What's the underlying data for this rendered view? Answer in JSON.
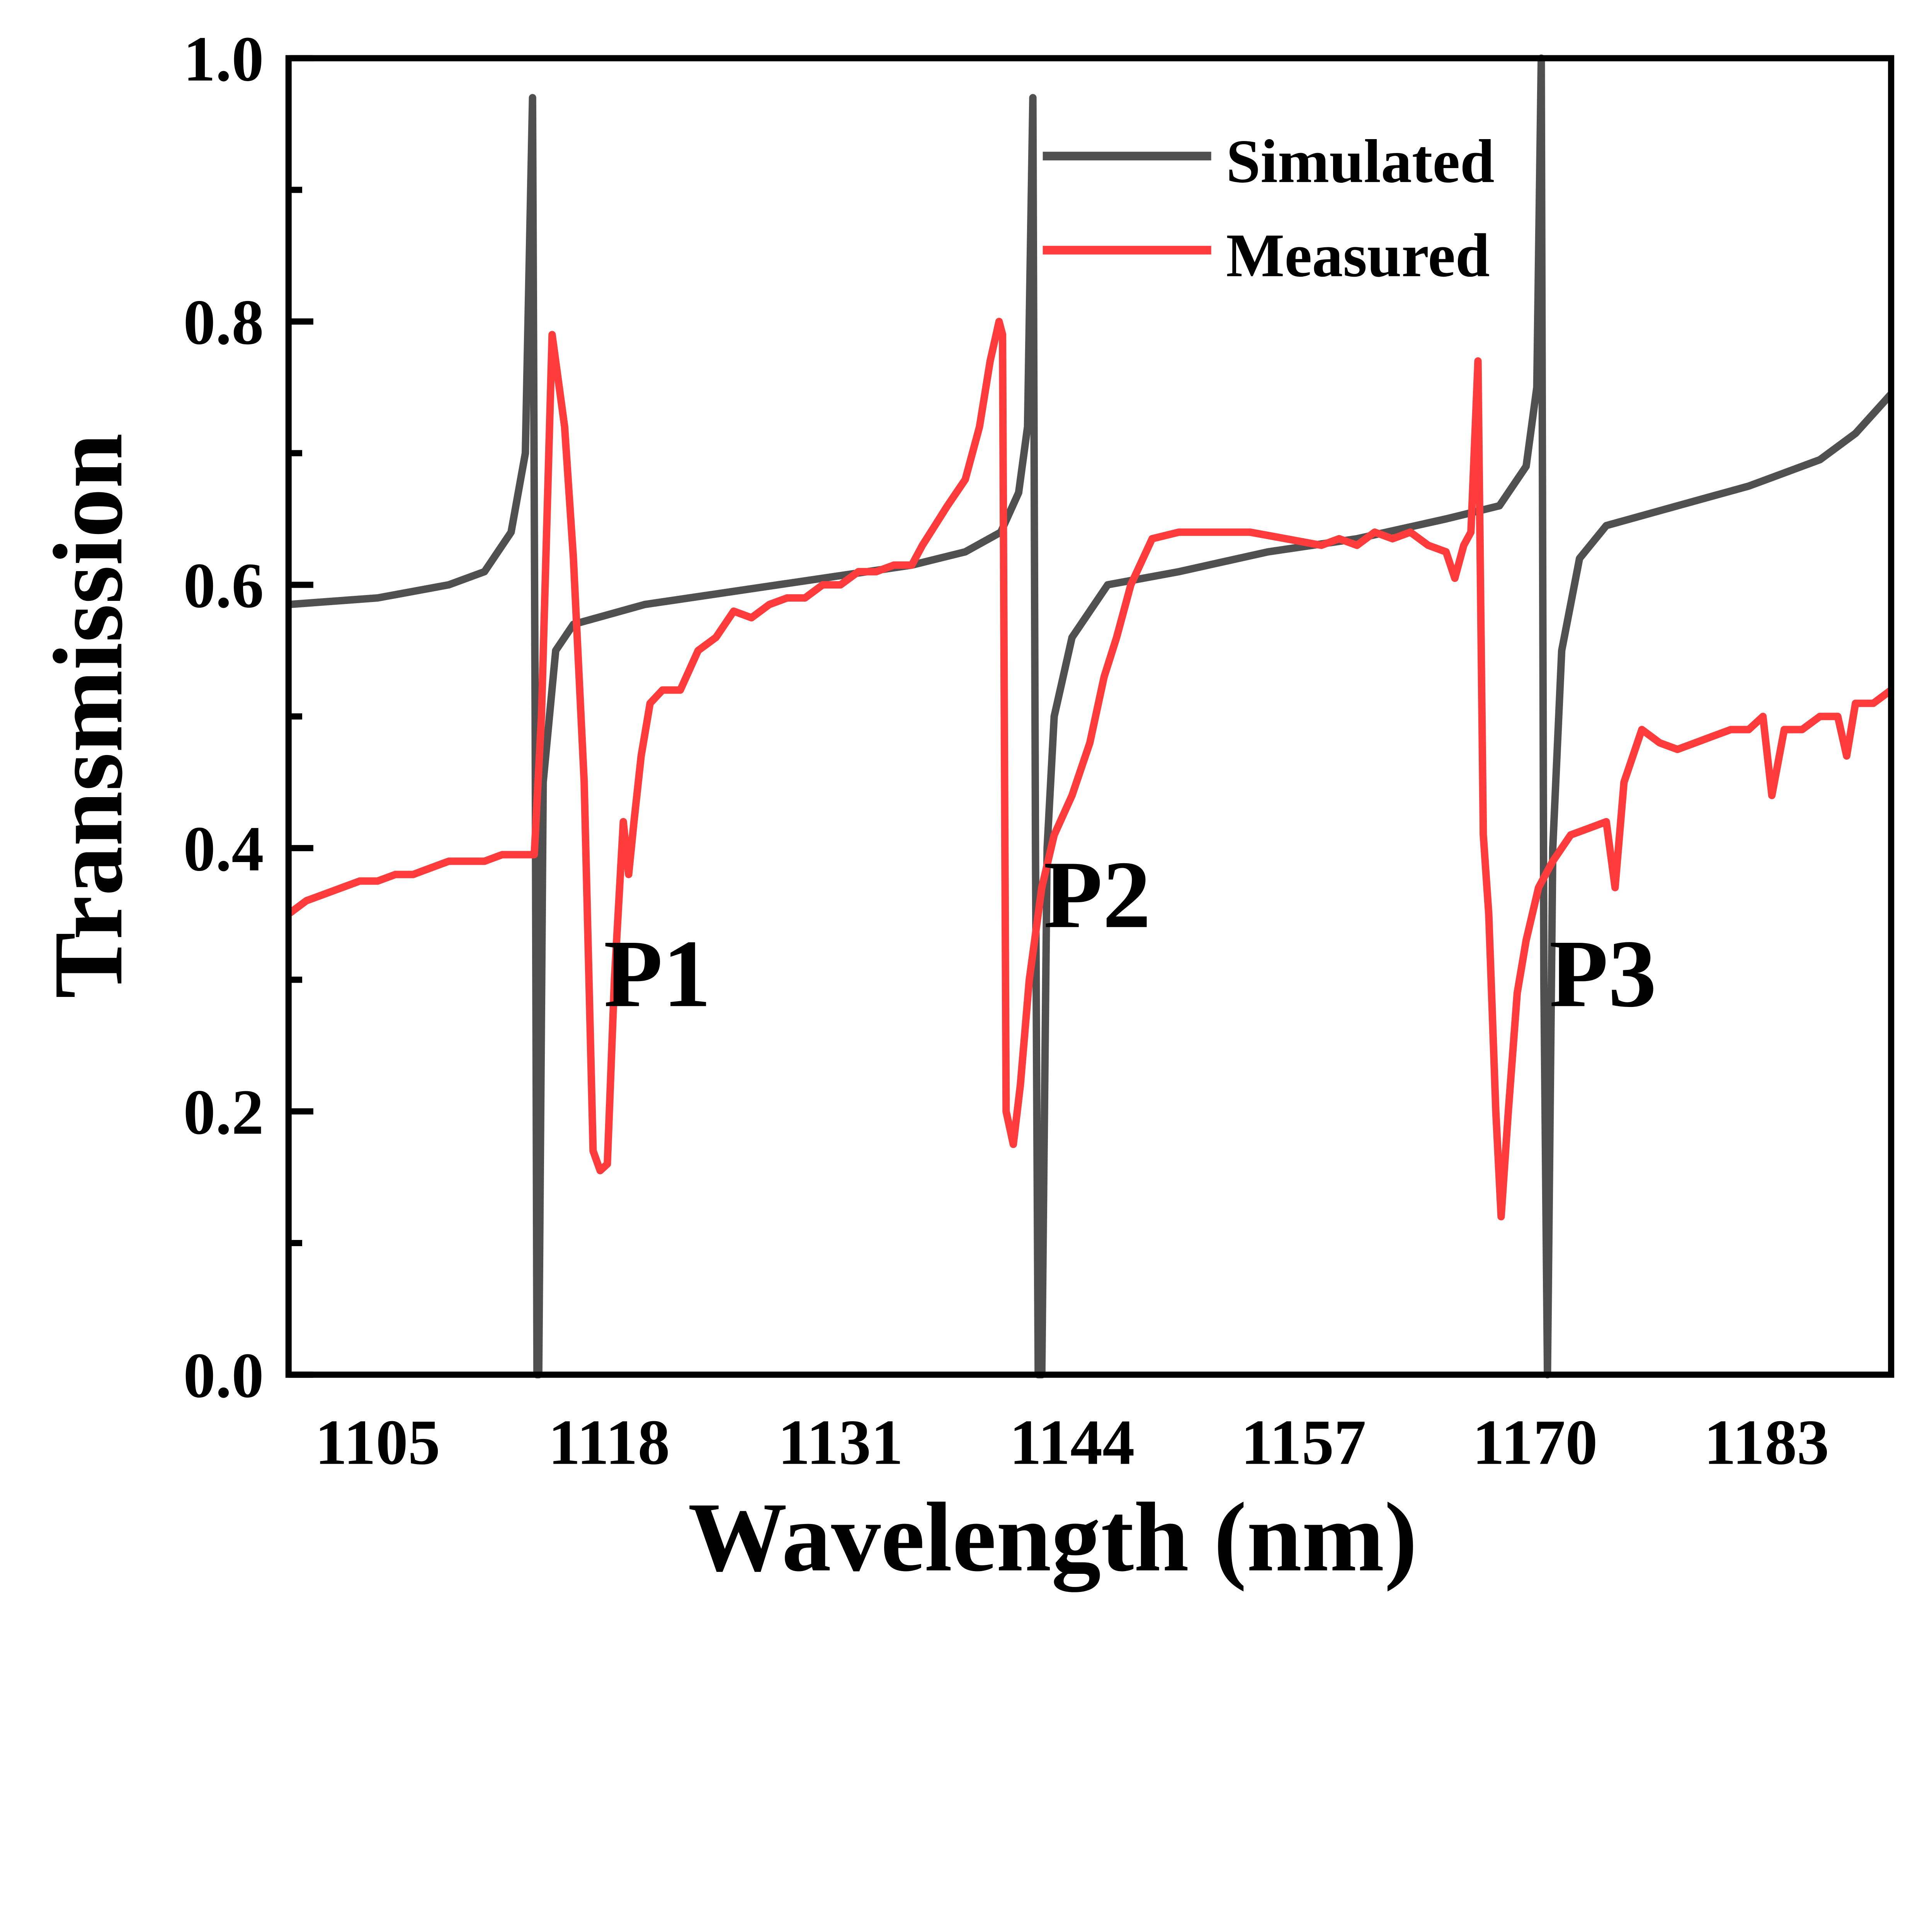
{
  "chart_data": {
    "type": "line",
    "title": "",
    "xlabel": "Wavelength (nm)",
    "ylabel": "Transmission",
    "xlim": [
      1100,
      1190
    ],
    "ylim": [
      0,
      1.0
    ],
    "xticks": [
      1105,
      1118,
      1131,
      1144,
      1157,
      1170,
      1183
    ],
    "yticks": [
      0.0,
      0.2,
      0.4,
      0.6,
      0.8,
      1.0
    ],
    "ytick_labels": [
      "0.0",
      "0.2",
      "0.4",
      "0.6",
      "0.8",
      "1.0"
    ],
    "grid": false,
    "legend_position": "top-right",
    "series": [
      {
        "name": "Simulated",
        "color": "#505050",
        "x": [
          1100,
          1105,
          1109,
          1111,
          1112.5,
          1113.3,
          1113.7,
          1113.85,
          1113.95,
          1114.05,
          1114.3,
          1115,
          1116,
          1120,
          1125,
          1130,
          1135,
          1138,
          1140,
          1141,
          1141.5,
          1141.8,
          1141.95,
          1142.1,
          1142.3,
          1142.6,
          1143,
          1144,
          1146,
          1150,
          1155,
          1160,
          1165,
          1168,
          1169.5,
          1170.1,
          1170.35,
          1170.5,
          1170.7,
          1171,
          1171.5,
          1172.5,
          1174,
          1178,
          1182,
          1186,
          1188,
          1190
        ],
        "y": [
          0.585,
          0.59,
          0.6,
          0.61,
          0.64,
          0.7,
          0.97,
          0.5,
          0.0,
          0.0,
          0.45,
          0.55,
          0.57,
          0.585,
          0.595,
          0.605,
          0.615,
          0.625,
          0.64,
          0.67,
          0.72,
          0.97,
          0.4,
          0.0,
          0.0,
          0.4,
          0.5,
          0.56,
          0.6,
          0.61,
          0.625,
          0.635,
          0.65,
          0.66,
          0.69,
          0.75,
          1.0,
          0.3,
          0.0,
          0.4,
          0.55,
          0.62,
          0.645,
          0.66,
          0.675,
          0.695,
          0.715,
          0.745
        ]
      },
      {
        "name": "Measured",
        "color": "#FF3B3B",
        "x": [
          1100,
          1101,
          1102,
          1103,
          1104,
          1105,
          1106,
          1107,
          1108,
          1109,
          1110,
          1111,
          1112,
          1113,
          1113.8,
          1114.2,
          1114.8,
          1115.5,
          1116,
          1116.6,
          1117.1,
          1117.5,
          1117.9,
          1118.3,
          1118.8,
          1119.1,
          1119.4,
          1119.8,
          1120.3,
          1121,
          1122,
          1123,
          1124,
          1125,
          1126,
          1127,
          1128,
          1129,
          1130,
          1131,
          1132,
          1133,
          1134,
          1135,
          1135.6,
          1136.3,
          1137,
          1138,
          1138.8,
          1139.4,
          1139.9,
          1140.1,
          1140.3,
          1140.7,
          1141.1,
          1141.6,
          1142.3,
          1143,
          1144,
          1145,
          1145.8,
          1146.5,
          1147.3,
          1148.5,
          1150,
          1152,
          1154,
          1156,
          1158,
          1159,
          1160,
          1161,
          1162,
          1163,
          1164,
          1165,
          1165.5,
          1166,
          1166.4,
          1166.8,
          1167.1,
          1167.4,
          1167.8,
          1168.1,
          1168.5,
          1169,
          1169.5,
          1170.2,
          1171,
          1172,
          1173,
          1174,
          1174.5,
          1175,
          1176,
          1177,
          1178,
          1179,
          1180,
          1181,
          1182,
          1182.8,
          1183.3,
          1184,
          1185,
          1186,
          1187,
          1187.5,
          1188,
          1189,
          1190
        ],
        "y": [
          0.35,
          0.36,
          0.365,
          0.37,
          0.375,
          0.375,
          0.38,
          0.38,
          0.385,
          0.39,
          0.39,
          0.39,
          0.395,
          0.395,
          0.395,
          0.5,
          0.79,
          0.72,
          0.62,
          0.45,
          0.17,
          0.155,
          0.16,
          0.3,
          0.42,
          0.38,
          0.42,
          0.47,
          0.51,
          0.52,
          0.52,
          0.55,
          0.56,
          0.58,
          0.575,
          0.585,
          0.59,
          0.59,
          0.6,
          0.6,
          0.61,
          0.61,
          0.615,
          0.615,
          0.63,
          0.645,
          0.66,
          0.68,
          0.72,
          0.77,
          0.8,
          0.79,
          0.2,
          0.175,
          0.22,
          0.3,
          0.37,
          0.41,
          0.44,
          0.48,
          0.53,
          0.56,
          0.6,
          0.635,
          0.64,
          0.64,
          0.64,
          0.635,
          0.63,
          0.635,
          0.63,
          0.64,
          0.635,
          0.64,
          0.63,
          0.625,
          0.605,
          0.63,
          0.64,
          0.77,
          0.41,
          0.35,
          0.2,
          0.12,
          0.2,
          0.29,
          0.33,
          0.37,
          0.39,
          0.41,
          0.415,
          0.42,
          0.37,
          0.45,
          0.49,
          0.48,
          0.475,
          0.48,
          0.485,
          0.49,
          0.49,
          0.5,
          0.44,
          0.49,
          0.49,
          0.5,
          0.5,
          0.47,
          0.51,
          0.51,
          0.52
        ]
      }
    ],
    "annotations": [
      {
        "text": "P1",
        "x": 1117.7,
        "y": 0.28
      },
      {
        "text": "P2",
        "x": 1142.4,
        "y": 0.34
      },
      {
        "text": "P3",
        "x": 1170.8,
        "y": 0.28
      }
    ]
  }
}
